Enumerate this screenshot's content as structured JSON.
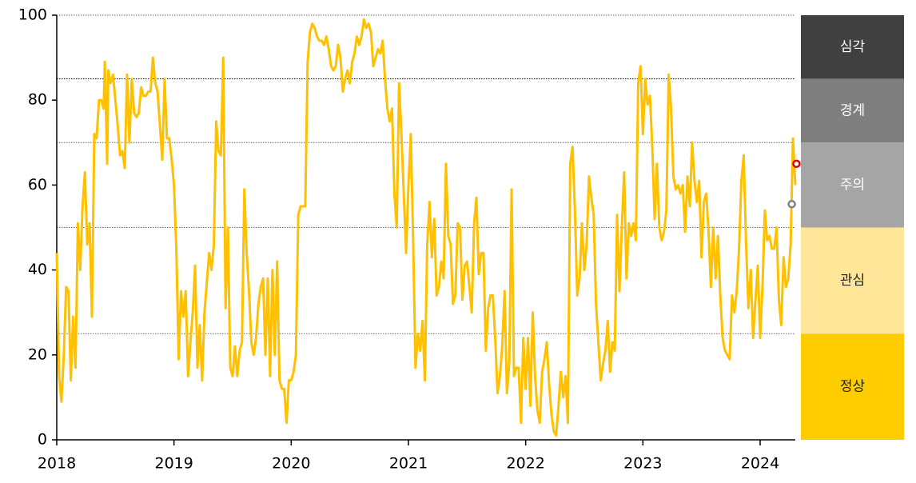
{
  "chart_data": {
    "type": "line",
    "color": "#ffc000",
    "x": [
      2018.0,
      2018.02,
      2018.04,
      2018.06,
      2018.08,
      2018.1,
      2018.12,
      2018.14,
      2018.16,
      2018.18,
      2018.2,
      2018.22,
      2018.24,
      2018.26,
      2018.28,
      2018.3,
      2018.32,
      2018.34,
      2018.36,
      2018.38,
      2018.4,
      2018.41,
      2018.43,
      2018.44,
      2018.46,
      2018.48,
      2018.5,
      2018.52,
      2018.54,
      2018.56,
      2018.58,
      2018.6,
      2018.62,
      2018.64,
      2018.66,
      2018.68,
      2018.7,
      2018.72,
      2018.74,
      2018.76,
      2018.78,
      2018.8,
      2018.82,
      2018.84,
      2018.86,
      2018.88,
      2018.9,
      2018.92,
      2018.94,
      2018.96,
      2018.98,
      2019.0,
      2019.02,
      2019.04,
      2019.06,
      2019.08,
      2019.1,
      2019.12,
      2019.14,
      2019.16,
      2019.18,
      2019.2,
      2019.22,
      2019.24,
      2019.26,
      2019.28,
      2019.3,
      2019.32,
      2019.34,
      2019.36,
      2019.38,
      2019.4,
      2019.42,
      2019.44,
      2019.46,
      2019.48,
      2019.5,
      2019.52,
      2019.54,
      2019.56,
      2019.58,
      2019.6,
      2019.62,
      2019.64,
      2019.66,
      2019.68,
      2019.7,
      2019.72,
      2019.74,
      2019.76,
      2019.78,
      2019.8,
      2019.82,
      2019.84,
      2019.86,
      2019.88,
      2019.9,
      2019.92,
      2019.94,
      2019.96,
      2019.98,
      2020.0,
      2020.02,
      2020.04,
      2020.06,
      2020.08,
      2020.1,
      2020.12,
      2020.14,
      2020.16,
      2020.18,
      2020.2,
      2020.22,
      2020.24,
      2020.26,
      2020.28,
      2020.3,
      2020.32,
      2020.34,
      2020.36,
      2020.38,
      2020.4,
      2020.42,
      2020.44,
      2020.46,
      2020.48,
      2020.5,
      2020.52,
      2020.54,
      2020.56,
      2020.58,
      2020.6,
      2020.62,
      2020.64,
      2020.66,
      2020.68,
      2020.7,
      2020.72,
      2020.74,
      2020.76,
      2020.78,
      2020.8,
      2020.82,
      2020.84,
      2020.86,
      2020.88,
      2020.9,
      2020.92,
      2020.94,
      2020.96,
      2020.98,
      2021.0,
      2021.02,
      2021.04,
      2021.06,
      2021.08,
      2021.1,
      2021.12,
      2021.14,
      2021.16,
      2021.18,
      2021.2,
      2021.22,
      2021.24,
      2021.26,
      2021.28,
      2021.3,
      2021.32,
      2021.34,
      2021.36,
      2021.38,
      2021.4,
      2021.42,
      2021.44,
      2021.46,
      2021.48,
      2021.5,
      2021.52,
      2021.54,
      2021.56,
      2021.58,
      2021.6,
      2021.62,
      2021.64,
      2021.66,
      2021.68,
      2021.7,
      2021.72,
      2021.74,
      2021.76,
      2021.78,
      2021.8,
      2021.82,
      2021.84,
      2021.86,
      2021.88,
      2021.9,
      2021.92,
      2021.94,
      2021.96,
      2021.98,
      2022.0,
      2022.02,
      2022.04,
      2022.06,
      2022.08,
      2022.1,
      2022.12,
      2022.14,
      2022.16,
      2022.18,
      2022.2,
      2022.22,
      2022.24,
      2022.26,
      2022.28,
      2022.3,
      2022.32,
      2022.34,
      2022.36,
      2022.38,
      2022.4,
      2022.42,
      2022.44,
      2022.46,
      2022.48,
      2022.5,
      2022.52,
      2022.54,
      2022.56,
      2022.58,
      2022.6,
      2022.62,
      2022.64,
      2022.66,
      2022.68,
      2022.7,
      2022.72,
      2022.74,
      2022.76,
      2022.78,
      2022.8,
      2022.82,
      2022.84,
      2022.86,
      2022.88,
      2022.9,
      2022.92,
      2022.94,
      2022.96,
      2022.98,
      2023.0,
      2023.02,
      2023.04,
      2023.06,
      2023.08,
      2023.1,
      2023.12,
      2023.14,
      2023.16,
      2023.18,
      2023.2,
      2023.22,
      2023.24,
      2023.26,
      2023.28,
      2023.3,
      2023.32,
      2023.34,
      2023.36,
      2023.38,
      2023.4,
      2023.42,
      2023.44,
      2023.46,
      2023.48,
      2023.5,
      2023.52,
      2023.54,
      2023.56,
      2023.58,
      2023.6,
      2023.62,
      2023.64,
      2023.66,
      2023.68,
      2023.7,
      2023.72,
      2023.74,
      2023.76,
      2023.78,
      2023.8,
      2023.82,
      2023.84,
      2023.86,
      2023.88,
      2023.9,
      2023.92,
      2023.94,
      2023.96,
      2023.98,
      2024.0,
      2024.02,
      2024.04,
      2024.06,
      2024.08,
      2024.1,
      2024.12,
      2024.14,
      2024.16,
      2024.18,
      2024.2,
      2024.22,
      2024.24,
      2024.26,
      2024.28,
      2024.3
    ],
    "values": [
      44,
      15,
      9,
      20,
      36,
      35,
      14,
      29,
      17,
      51,
      40,
      55,
      63,
      46,
      51,
      29,
      72,
      71,
      80,
      80,
      78,
      89,
      65,
      87,
      84,
      86,
      80,
      74,
      67,
      68,
      64,
      86,
      70,
      85,
      77,
      76,
      77,
      83,
      81,
      81,
      82,
      82,
      90,
      84,
      82,
      74,
      66,
      85,
      71,
      71,
      66,
      60,
      45,
      19,
      35,
      29,
      35,
      15,
      23,
      30,
      41,
      17,
      27,
      14,
      30,
      37,
      44,
      40,
      46,
      75,
      68,
      67,
      90,
      31,
      50,
      17,
      15,
      22,
      15,
      21,
      23,
      59,
      44,
      35,
      23,
      20,
      24,
      32,
      36,
      38,
      20,
      38,
      15,
      40,
      20,
      42,
      14,
      12,
      12,
      4,
      14,
      14,
      16,
      20,
      53,
      55,
      55,
      55,
      89,
      96,
      98,
      97,
      95,
      94,
      94,
      93,
      95,
      92,
      88,
      87,
      88,
      93,
      90,
      82,
      85,
      87,
      84,
      89,
      91,
      95,
      93,
      95,
      99,
      97,
      98,
      96,
      88,
      90,
      92,
      91,
      94,
      85,
      78,
      75,
      78,
      58,
      50,
      84,
      72,
      58,
      44,
      60,
      72,
      47,
      17,
      25,
      21,
      28,
      14,
      46,
      56,
      43,
      52,
      34,
      36,
      42,
      38,
      65,
      48,
      46,
      32,
      34,
      51,
      50,
      33,
      41,
      42,
      36,
      30,
      51,
      57,
      39,
      44,
      44,
      21,
      31,
      34,
      34,
      24,
      11,
      15,
      22,
      35,
      11,
      18,
      59,
      15,
      17,
      17,
      4,
      24,
      12,
      24,
      8,
      30,
      15,
      7,
      4,
      16,
      19,
      23,
      13,
      6,
      2,
      1,
      8,
      16,
      10,
      15,
      4,
      65,
      69,
      54,
      34,
      38,
      51,
      40,
      46,
      62,
      57,
      53,
      32,
      23,
      14,
      18,
      21,
      28,
      16,
      23,
      21,
      53,
      35,
      50,
      63,
      38,
      51,
      48,
      51,
      47,
      84,
      88,
      72,
      85,
      79,
      81,
      69,
      52,
      65,
      50,
      47,
      49,
      54,
      86,
      78,
      62,
      59,
      60,
      58,
      60,
      49,
      62,
      55,
      70,
      61,
      56,
      61,
      43,
      56,
      58,
      49,
      36,
      50,
      38,
      48,
      34,
      24,
      21,
      20,
      19,
      34,
      30,
      35,
      45,
      61,
      67,
      46,
      31,
      40,
      24,
      33,
      41,
      24,
      36,
      54,
      47,
      48,
      45,
      45,
      50,
      33,
      27,
      43,
      36,
      38,
      46,
      71,
      60
    ],
    "markers": [
      {
        "x": 2024.31,
        "value": 65,
        "color": "#e00000"
      },
      {
        "x": 2024.27,
        "value": 55.5,
        "color": "#808080"
      }
    ],
    "xlim": [
      2018,
      2024.3
    ],
    "xticks": [
      2018,
      2019,
      2020,
      2021,
      2022,
      2023,
      2024
    ],
    "ylim": [
      0,
      100
    ],
    "yticks": [
      0,
      20,
      40,
      60,
      80,
      100
    ],
    "bands": [
      {
        "label": "심각",
        "from": 85,
        "to": 100,
        "color": "#404040"
      },
      {
        "label": "경계",
        "from": 70,
        "to": 85,
        "color": "#7f7f7f"
      },
      {
        "label": "주의",
        "from": 50,
        "to": 70,
        "color": "#a5a5a5"
      },
      {
        "label": "관심",
        "from": 25,
        "to": 50,
        "color": "#ffe699"
      },
      {
        "label": "정상",
        "from": 0,
        "to": 25,
        "color": "#ffcc00"
      }
    ]
  }
}
